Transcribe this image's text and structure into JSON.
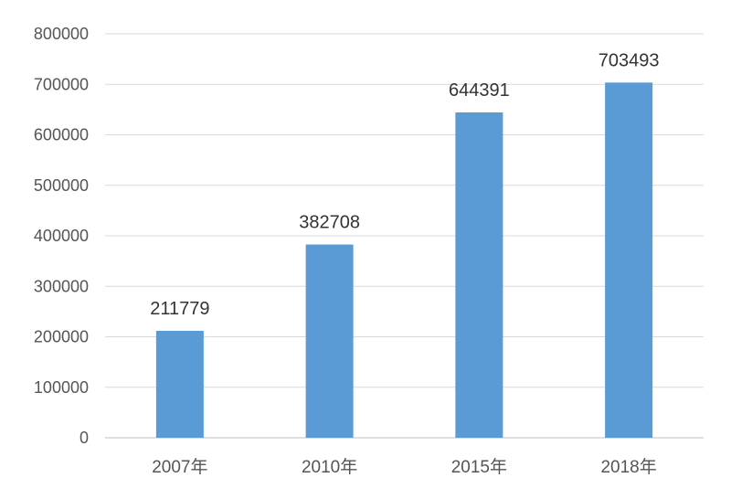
{
  "chart_data": {
    "type": "bar",
    "title": "",
    "xlabel": "",
    "ylabel": "",
    "categories": [
      "2007年",
      "2010年",
      "2015年",
      "2018年"
    ],
    "values": [
      211779,
      382708,
      644391,
      703493
    ],
    "data_labels": [
      "211779",
      "382708",
      "644391",
      "703493"
    ],
    "ylim": [
      0,
      800000
    ],
    "y_ticks": [
      0,
      100000,
      200000,
      300000,
      400000,
      500000,
      600000,
      700000,
      800000
    ],
    "y_tick_labels": [
      "0",
      "100000",
      "200000",
      "300000",
      "400000",
      "500000",
      "600000",
      "700000",
      "800000"
    ],
    "grid": true,
    "legend": "none",
    "bar_color": "#5b9bd5",
    "grid_color": "#d9d9d9",
    "axis_color": "#bfbfbf"
  }
}
